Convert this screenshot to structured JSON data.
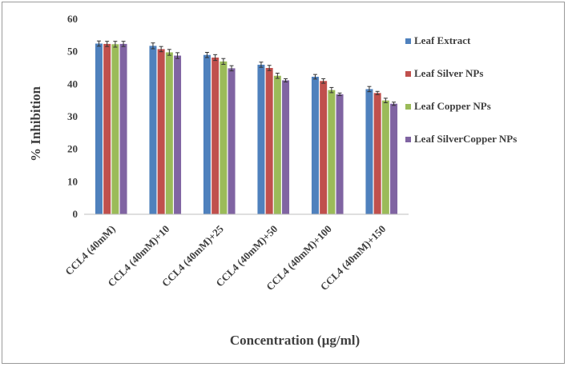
{
  "chart_data": {
    "type": "bar",
    "categories": [
      "CCL4 (40mM)",
      "CCL4 (40mM)+10",
      "CCL4 (40mM)+25",
      "CCL4 (40mM)+50",
      "CCL4 (40mM)+100",
      "CCL4 (40mM)+150"
    ],
    "series": [
      {
        "name": "Leaf Extract",
        "color": "#4f81bd",
        "values": [
          52.5,
          51.8,
          49.0,
          46.0,
          42.3,
          38.5
        ],
        "errors": [
          0.8,
          0.9,
          0.8,
          0.8,
          0.7,
          0.8
        ]
      },
      {
        "name": "Leaf Silver NPs",
        "color": "#c0504d",
        "values": [
          52.4,
          50.8,
          48.2,
          45.0,
          41.0,
          37.3
        ],
        "errors": [
          0.8,
          0.8,
          0.9,
          0.8,
          0.7,
          0.5
        ]
      },
      {
        "name": "Leaf Copper NPs",
        "color": "#9bbb59",
        "values": [
          52.3,
          49.8,
          47.0,
          42.6,
          38.2,
          35.0
        ],
        "errors": [
          0.9,
          0.9,
          0.9,
          0.8,
          0.8,
          0.7
        ]
      },
      {
        "name": "Leaf SilverCopper NPs",
        "color": "#8064a2",
        "values": [
          52.4,
          48.8,
          44.9,
          41.2,
          36.9,
          34.0
        ],
        "errors": [
          0.8,
          0.9,
          0.8,
          0.5,
          0.4,
          0.5
        ]
      }
    ],
    "xlabel": "Concentration (µg/ml)",
    "ylabel": "% Inhibition",
    "ylim": [
      0,
      60
    ],
    "yticks": [
      "0",
      "10",
      "20",
      "30",
      "40",
      "50",
      "60"
    ],
    "grid": false,
    "legend": "right"
  }
}
